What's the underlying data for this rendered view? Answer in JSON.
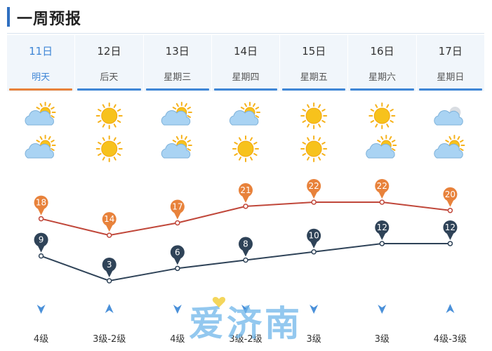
{
  "header": {
    "title": "一周预报"
  },
  "days": [
    {
      "date": "11日",
      "label": "明天",
      "day_icon": "cloudy-sun-icon",
      "night_icon": "cloudy-sun-icon",
      "high": 18,
      "low": 9,
      "wind_dir_icon": "wind-arrow-down-icon",
      "wind": "4级"
    },
    {
      "date": "12日",
      "label": "后天",
      "day_icon": "sun-icon",
      "night_icon": "sun-icon",
      "high": 14,
      "low": 3,
      "wind_dir_icon": "wind-arrow-up-icon",
      "wind": "3级-2级"
    },
    {
      "date": "13日",
      "label": "星期三",
      "day_icon": "cloudy-sun-icon",
      "night_icon": "cloudy-sun-icon",
      "high": 17,
      "low": 6,
      "wind_dir_icon": "wind-arrow-down-icon",
      "wind": "4级"
    },
    {
      "date": "14日",
      "label": "星期四",
      "day_icon": "cloudy-sun-icon",
      "night_icon": "sun-icon",
      "high": 21,
      "low": 8,
      "wind_dir_icon": "wind-arrow-down-icon",
      "wind": "3级-2级"
    },
    {
      "date": "15日",
      "label": "星期五",
      "day_icon": "sun-icon",
      "night_icon": "sun-icon",
      "high": 22,
      "low": 10,
      "wind_dir_icon": "wind-arrow-down-icon",
      "wind": "3级"
    },
    {
      "date": "16日",
      "label": "星期六",
      "day_icon": "sun-icon",
      "night_icon": "cloudy-sun-icon",
      "high": 22,
      "low": 12,
      "wind_dir_icon": "wind-arrow-down-icon",
      "wind": "3级"
    },
    {
      "date": "17日",
      "label": "星期日",
      "day_icon": "cloudy-icon",
      "night_icon": "cloudy-sun-icon",
      "high": 20,
      "low": 12,
      "wind_dir_icon": "wind-arrow-up-icon",
      "wind": "4级-3级"
    }
  ],
  "active_index": 0,
  "watermark": "爱济南",
  "colors": {
    "high_line": "#c0473a",
    "high_pin": "#e8823b",
    "low_line": "#2f4358",
    "low_pin": "#2f4358",
    "accent_blue": "#3f86d6",
    "accent_orange": "#e8823b",
    "wind_arrow": "#4a90d9"
  }
}
